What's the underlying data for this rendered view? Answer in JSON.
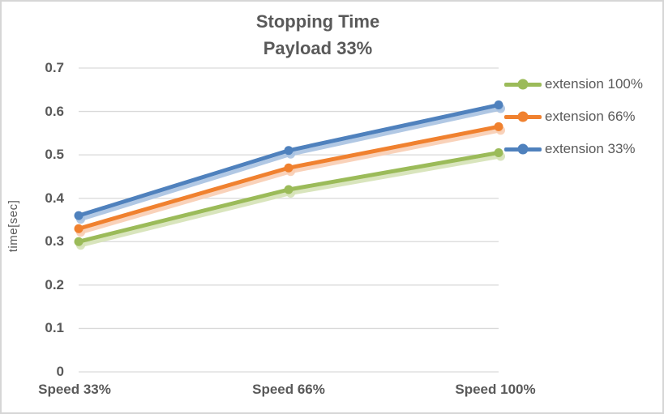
{
  "chart_data": {
    "type": "line",
    "title": "Stopping Time",
    "subtitle": "Payload 33%",
    "ylabel": "time[sec]",
    "xlabel": "",
    "categories": [
      "Speed 33%",
      "Speed 66%",
      "Speed 100%"
    ],
    "series": [
      {
        "name": "extension 100%",
        "color": "#9BBB59",
        "shadow_color": "#D5E2B6",
        "values": [
          0.3,
          0.42,
          0.505
        ]
      },
      {
        "name": "extension 66%",
        "color": "#F0812F",
        "shadow_color": "#F8CDB2",
        "values": [
          0.33,
          0.47,
          0.565
        ]
      },
      {
        "name": "extension 33%",
        "color": "#4F81BD",
        "shadow_color": "#A9C2E1",
        "values": [
          0.36,
          0.51,
          0.615
        ]
      }
    ],
    "ylim": [
      0,
      0.7
    ],
    "y_ticks": [
      0.7,
      0.6,
      0.5,
      0.4,
      0.3,
      0.2,
      0.1,
      0
    ],
    "y_tick_labels": [
      "0.7",
      "0.6",
      "0.5",
      "0.4",
      "0.3",
      "0.2",
      "0.1",
      "0"
    ],
    "grid": true,
    "legend_position": "right",
    "marker": "circle",
    "colors": {
      "text": "#595959",
      "gridline": "#D9D9D9",
      "frame_border": "#D6D6D6",
      "background": "#FFFFFF"
    }
  }
}
